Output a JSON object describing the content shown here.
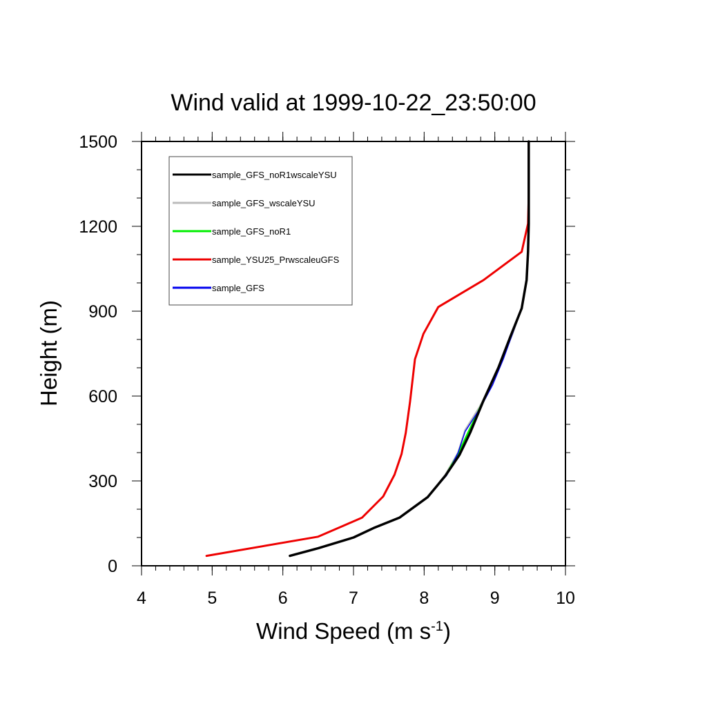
{
  "chart_data": {
    "type": "line",
    "title": "Wind valid at 1999-10-22_23:50:00",
    "xlabel": "Wind Speed (m s",
    "xlabel_superscript": "-1",
    "xlabel_suffix": ")",
    "ylabel": "Height (m)",
    "xlim": [
      4,
      10
    ],
    "ylim": [
      0,
      1500
    ],
    "x_ticks": [
      4,
      5,
      6,
      7,
      8,
      9,
      10
    ],
    "y_ticks": [
      0,
      300,
      600,
      900,
      1200,
      1500
    ],
    "grid": false,
    "legend_position": "top-left",
    "series": [
      {
        "name": "sample_GFS_noR1wscaleYSU",
        "color": "#000000",
        "points": [
          [
            6.1,
            35
          ],
          [
            6.5,
            62
          ],
          [
            7.0,
            100
          ],
          [
            7.3,
            135
          ],
          [
            7.65,
            170
          ],
          [
            8.05,
            243
          ],
          [
            8.3,
            318
          ],
          [
            8.5,
            392
          ],
          [
            8.65,
            470
          ],
          [
            8.85,
            590
          ],
          [
            9.05,
            700
          ],
          [
            9.22,
            810
          ],
          [
            9.38,
            910
          ],
          [
            9.45,
            1010
          ],
          [
            9.47,
            1110
          ],
          [
            9.48,
            1210
          ],
          [
            9.48,
            1310
          ],
          [
            9.48,
            1410
          ],
          [
            9.48,
            1500
          ]
        ]
      },
      {
        "name": "sample_GFS_wscaleYSU",
        "color": "#bbbbbb",
        "points": [
          [
            6.1,
            35
          ],
          [
            6.5,
            62
          ],
          [
            7.0,
            100
          ],
          [
            7.3,
            135
          ],
          [
            7.65,
            170
          ],
          [
            8.05,
            243
          ],
          [
            8.3,
            322
          ],
          [
            8.48,
            400
          ],
          [
            8.58,
            480
          ],
          [
            8.78,
            560
          ],
          [
            8.95,
            640
          ],
          [
            9.1,
            730
          ],
          [
            9.25,
            820
          ],
          [
            9.38,
            910
          ],
          [
            9.45,
            1010
          ],
          [
            9.47,
            1110
          ],
          [
            9.48,
            1210
          ],
          [
            9.48,
            1310
          ],
          [
            9.48,
            1410
          ],
          [
            9.48,
            1500
          ]
        ]
      },
      {
        "name": "sample_GFS_noR1",
        "color": "#00ee00",
        "points": [
          [
            6.1,
            35
          ],
          [
            6.5,
            62
          ],
          [
            7.0,
            100
          ],
          [
            7.3,
            135
          ],
          [
            7.65,
            170
          ],
          [
            8.05,
            243
          ],
          [
            8.3,
            318
          ],
          [
            8.48,
            395
          ],
          [
            8.62,
            470
          ],
          [
            8.85,
            590
          ],
          [
            9.05,
            700
          ],
          [
            9.22,
            810
          ],
          [
            9.38,
            910
          ],
          [
            9.45,
            1010
          ],
          [
            9.47,
            1110
          ],
          [
            9.48,
            1210
          ],
          [
            9.48,
            1310
          ],
          [
            9.48,
            1410
          ],
          [
            9.48,
            1500
          ]
        ]
      },
      {
        "name": "sample_YSU25_PrwscaleuGFS",
        "color": "#ee0000",
        "points": [
          [
            4.92,
            35
          ],
          [
            6.5,
            103
          ],
          [
            7.12,
            170
          ],
          [
            7.42,
            245
          ],
          [
            7.58,
            322
          ],
          [
            7.68,
            395
          ],
          [
            7.74,
            470
          ],
          [
            7.8,
            580
          ],
          [
            7.87,
            730
          ],
          [
            7.99,
            820
          ],
          [
            8.2,
            915
          ],
          [
            8.84,
            1010
          ],
          [
            9.38,
            1110
          ],
          [
            9.47,
            1210
          ],
          [
            9.48,
            1310
          ],
          [
            9.48,
            1410
          ],
          [
            9.48,
            1500
          ]
        ]
      },
      {
        "name": "sample_GFS",
        "color": "#0000ee",
        "points": [
          [
            6.1,
            35
          ],
          [
            6.5,
            62
          ],
          [
            7.0,
            100
          ],
          [
            7.3,
            135
          ],
          [
            7.65,
            170
          ],
          [
            8.05,
            243
          ],
          [
            8.32,
            320
          ],
          [
            8.48,
            400
          ],
          [
            8.58,
            475
          ],
          [
            8.8,
            560
          ],
          [
            8.97,
            640
          ],
          [
            9.12,
            730
          ],
          [
            9.25,
            820
          ],
          [
            9.38,
            910
          ],
          [
            9.45,
            1010
          ],
          [
            9.47,
            1110
          ],
          [
            9.48,
            1210
          ],
          [
            9.48,
            1310
          ],
          [
            9.48,
            1410
          ],
          [
            9.48,
            1500
          ]
        ]
      }
    ]
  }
}
